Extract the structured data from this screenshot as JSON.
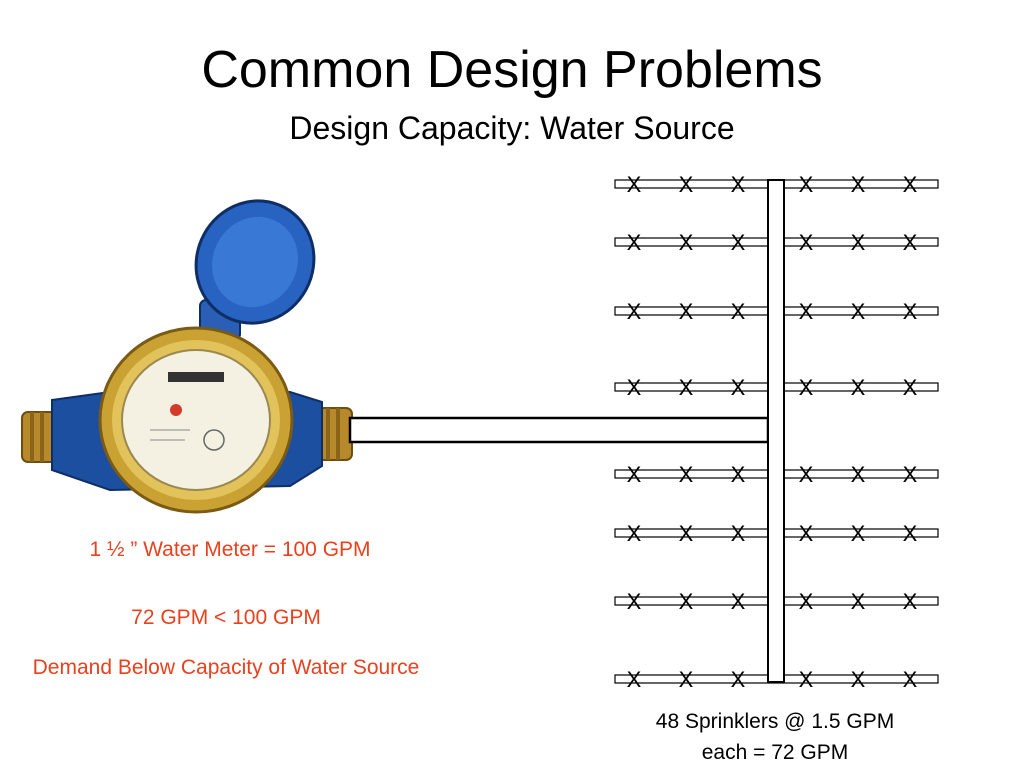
{
  "slide": {
    "title": "Common Design Problems",
    "subtitle": "Design Capacity: Water Source"
  },
  "notes": {
    "meter_capacity": "1 ½ ” Water Meter = 100 GPM",
    "comparison": "72 GPM < 100 GPM",
    "conclusion": "Demand Below Capacity of Water Source"
  },
  "caption": {
    "line1": "48 Sprinklers @ 1.5 GPM",
    "line2": "each = 72 GPM"
  },
  "diagram": {
    "sprinkler_symbol": "X",
    "sprinklers_per_row": 6,
    "row_count": 8
  },
  "colors": {
    "note_text": "#e8411e",
    "meter_body": "#1c4fa0",
    "meter_brass": "#c9a233"
  }
}
